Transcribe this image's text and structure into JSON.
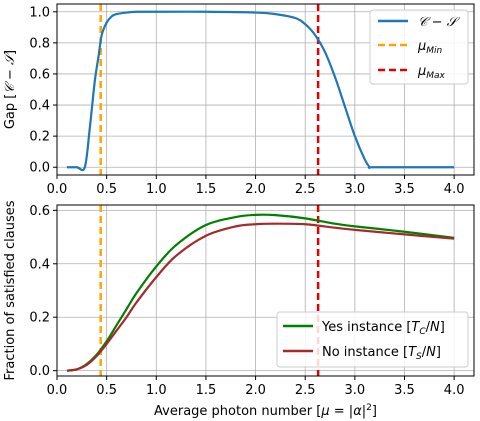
{
  "chart_data": [
    {
      "type": "line",
      "title": "",
      "xlabel": "",
      "ylabel": "Gap [𝓒 − 𝓢]",
      "xlim": [
        0,
        4.2
      ],
      "ylim": [
        -0.05,
        1.05
      ],
      "xticks": [
        "0.0",
        "0.5",
        "1.0",
        "1.5",
        "2.0",
        "2.5",
        "3.0",
        "3.5",
        "4.0"
      ],
      "yticks": [
        "0.0",
        "0.2",
        "0.4",
        "0.6",
        "0.8",
        "1.0"
      ],
      "grid": true,
      "legend_position": "top-right",
      "series": [
        {
          "name": "𝓒 − 𝓢",
          "color": "#1f77b4",
          "style": "solid",
          "x": [
            0.1,
            0.2,
            0.28,
            0.33,
            0.38,
            0.42,
            0.45,
            0.5,
            0.55,
            0.6,
            0.7,
            0.8,
            1.0,
            1.5,
            2.0,
            2.2,
            2.4,
            2.5,
            2.6,
            2.7,
            2.8,
            2.9,
            3.0,
            3.1,
            3.15,
            3.17,
            3.5,
            4.0
          ],
          "y": [
            0.0,
            0.0,
            0.0,
            0.25,
            0.55,
            0.72,
            0.85,
            0.93,
            0.97,
            0.985,
            0.995,
            1.0,
            1.0,
            1.0,
            0.995,
            0.985,
            0.96,
            0.92,
            0.85,
            0.74,
            0.58,
            0.39,
            0.2,
            0.05,
            0.0,
            0.0,
            0.0,
            0.0
          ]
        }
      ],
      "vlines": [
        {
          "name": "μ_Min",
          "x": 0.44,
          "color": "#ffa500",
          "style": "dashed"
        },
        {
          "name": "μ_Max",
          "x": 2.63,
          "color": "#e00000",
          "style": "dashed"
        }
      ]
    },
    {
      "type": "line",
      "title": "",
      "xlabel": "Average photon number [μ = |α|²]",
      "ylabel": "Fraction of satisfied clauses",
      "xlim": [
        0,
        4.2
      ],
      "ylim": [
        -0.02,
        0.62
      ],
      "xticks": [
        "0.0",
        "0.5",
        "1.0",
        "1.5",
        "2.0",
        "2.5",
        "3.0",
        "3.5",
        "4.0"
      ],
      "yticks": [
        "0.0",
        "0.2",
        "0.4",
        "0.6"
      ],
      "grid": true,
      "legend_position": "bottom-right",
      "series": [
        {
          "name": "Yes instance [T_C/N]",
          "color": "#008000",
          "style": "solid",
          "x": [
            0.1,
            0.2,
            0.3,
            0.4,
            0.5,
            0.6,
            0.7,
            0.8,
            1.0,
            1.2,
            1.5,
            1.8,
            2.0,
            2.2,
            2.5,
            2.8,
            3.0,
            3.5,
            4.0
          ],
          "y": [
            0.0,
            0.005,
            0.025,
            0.06,
            0.11,
            0.17,
            0.23,
            0.29,
            0.39,
            0.47,
            0.545,
            0.575,
            0.583,
            0.582,
            0.57,
            0.55,
            0.54,
            0.52,
            0.497
          ]
        },
        {
          "name": "No instance [T_S/N]",
          "color": "#a52a2a",
          "style": "solid",
          "x": [
            0.1,
            0.2,
            0.3,
            0.4,
            0.5,
            0.6,
            0.7,
            0.8,
            1.0,
            1.2,
            1.5,
            1.8,
            2.0,
            2.2,
            2.5,
            2.8,
            3.0,
            3.5,
            4.0
          ],
          "y": [
            0.0,
            0.005,
            0.022,
            0.055,
            0.1,
            0.15,
            0.2,
            0.255,
            0.35,
            0.43,
            0.505,
            0.54,
            0.548,
            0.55,
            0.548,
            0.535,
            0.527,
            0.51,
            0.494
          ]
        }
      ],
      "vlines": [
        {
          "name": "μ_Min",
          "x": 0.44,
          "color": "#ffa500",
          "style": "dashed"
        },
        {
          "name": "μ_Max",
          "x": 2.63,
          "color": "#e00000",
          "style": "dashed"
        }
      ]
    }
  ]
}
